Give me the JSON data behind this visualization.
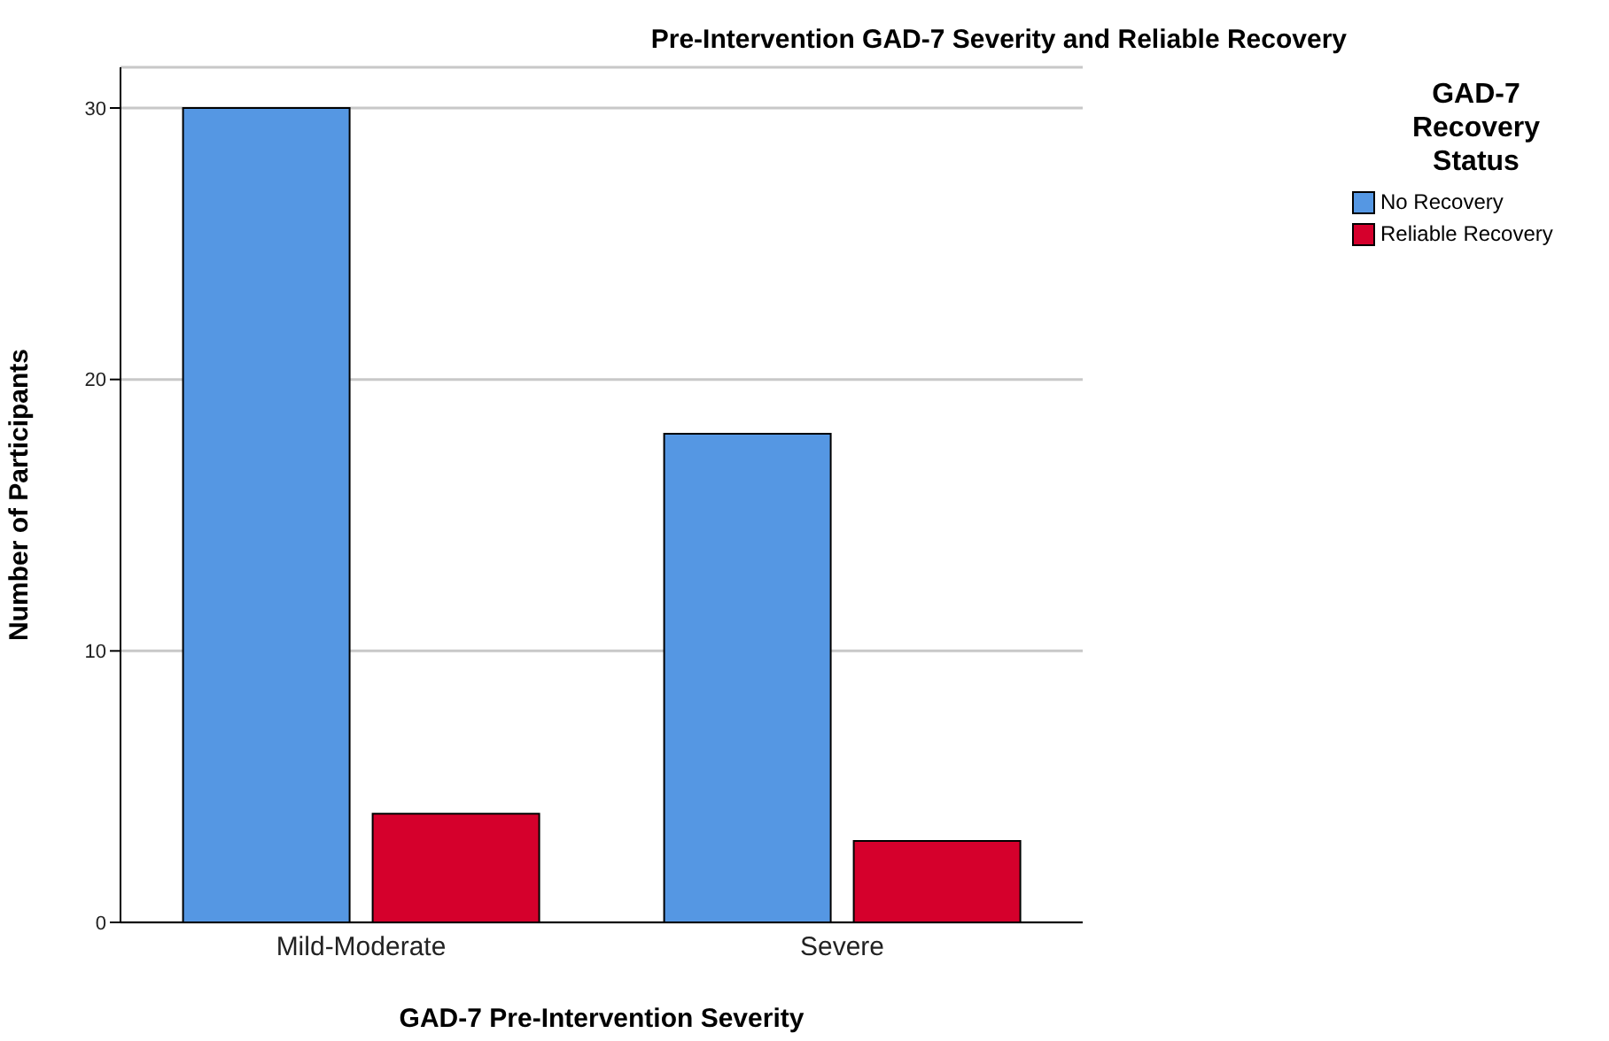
{
  "chart_data": {
    "type": "bar",
    "title": "Pre-Intervention GAD-7 Severity and Reliable Recovery",
    "xlabel": "GAD-7 Pre-Intervention Severity",
    "ylabel": "Number of Participants",
    "legend_title": "GAD-7 Recovery Status",
    "categories": [
      "Mild-Moderate",
      "Severe"
    ],
    "series": [
      {
        "name": "No Recovery",
        "color": "#5597e3",
        "values": [
          30,
          18
        ]
      },
      {
        "name": "Reliable Recovery",
        "color": "#d5002c",
        "values": [
          4,
          3
        ]
      }
    ],
    "ylim": [
      0,
      31.5
    ],
    "yticks": [
      0,
      10,
      20,
      30
    ],
    "grid": "y",
    "legend": "top right"
  }
}
